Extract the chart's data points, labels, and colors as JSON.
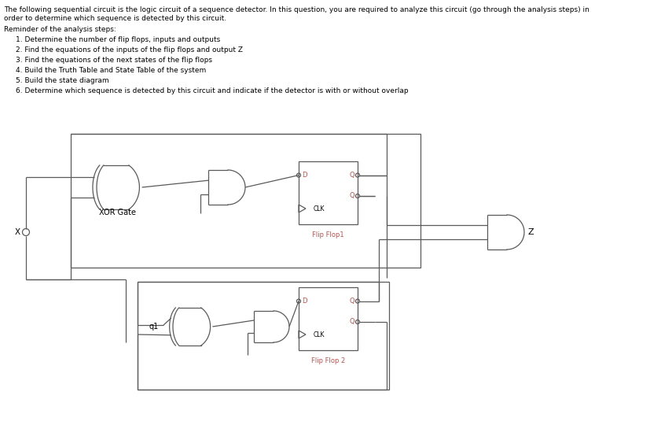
{
  "bg_color": "#ffffff",
  "text_color": "#000000",
  "line_color": "#5a5a5a",
  "label_color": "#c0504d",
  "header_line1": "The following sequential circuit is the logic circuit of a sequence detector. In this question, you are required to analyze this circuit (go through the analysis steps) in",
  "header_line2": "order to determine which sequence is detected by this circuit.",
  "reminder_text": "Reminder of the analysis steps:",
  "steps": [
    "1. Determine the number of flip flops, inputs and outputs",
    "2. Find the equations of the inputs of the flip flops and output Z",
    "3. Find the equations of the next states of the flip flops",
    "4. Build the Truth Table and State Table of the system",
    "5. Build the state diagram",
    "6. Determine which sequence is detected by this circuit and indicate if the detector is with or without overlap"
  ],
  "xor_label": "XOR Gate",
  "ff1_label": "Flip Flop1",
  "ff2_label": "Flip Flop 2",
  "clk_label": "CLK",
  "x_label": "X",
  "z_label": "Z",
  "q1_label": "q1",
  "d_label": "D",
  "q_label": "Q"
}
